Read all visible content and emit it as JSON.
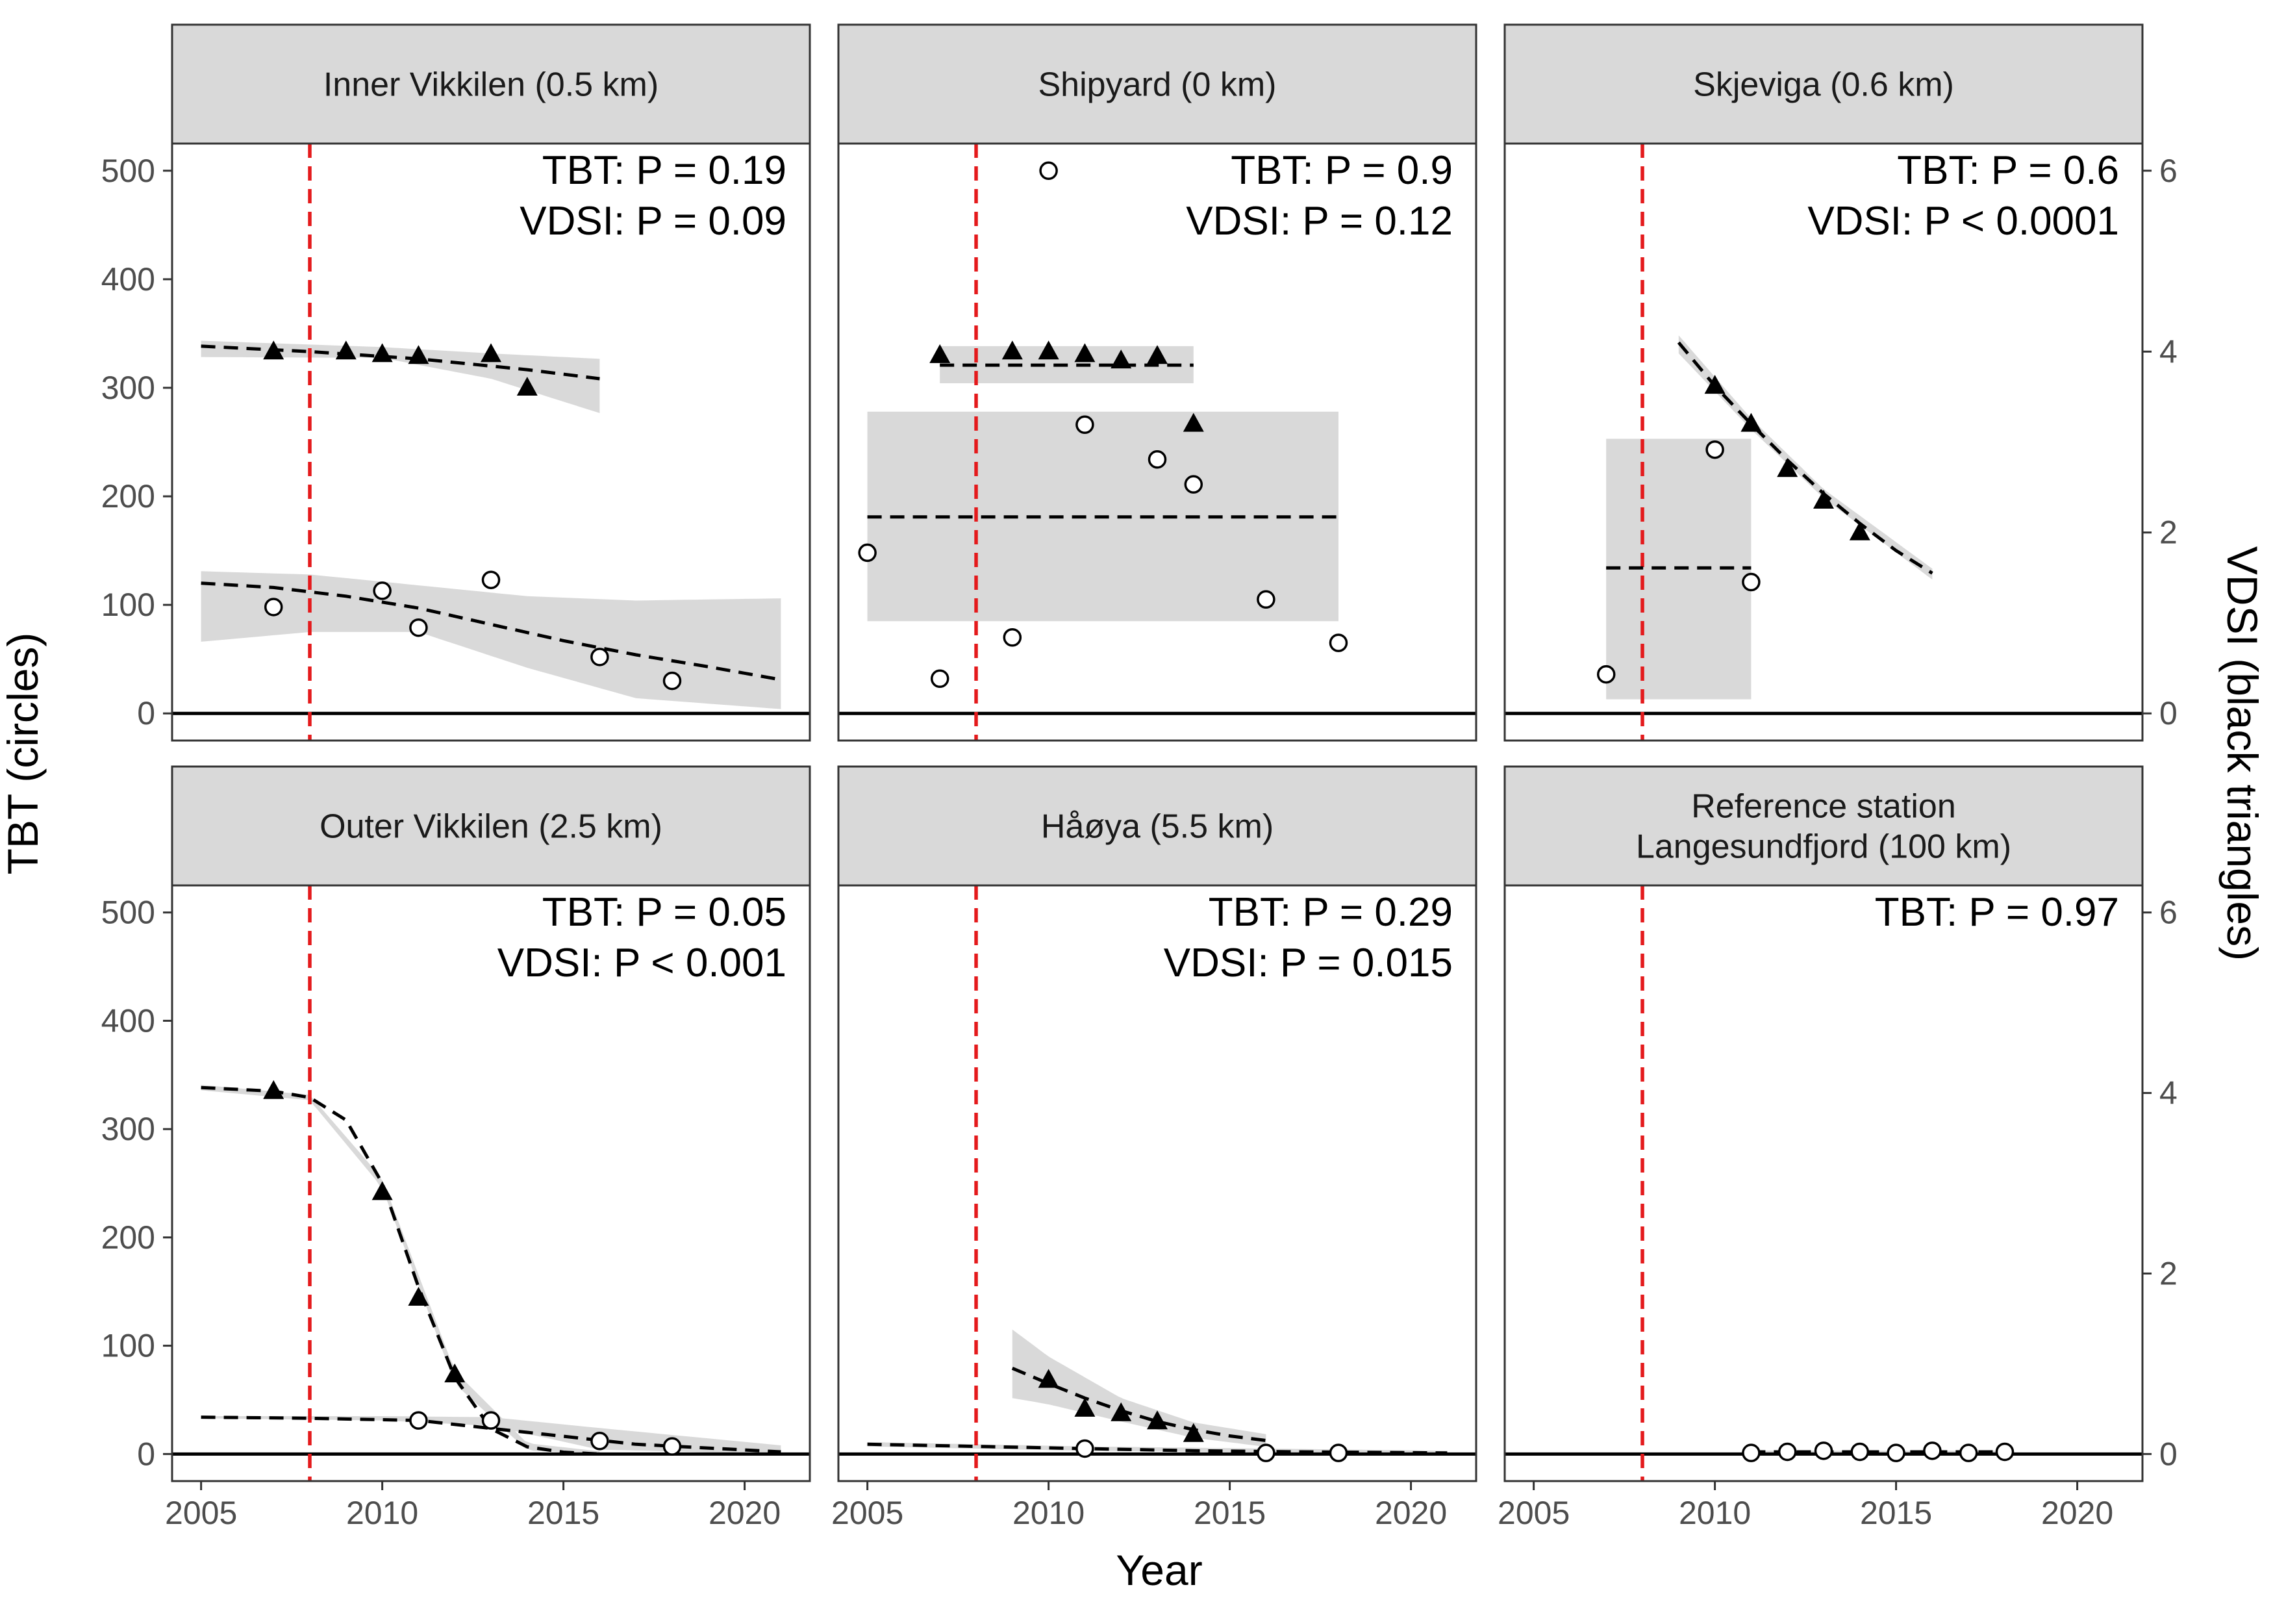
{
  "chart_data": {
    "type": "scatter",
    "layout": "faceted 2x3 with secondary y-axis",
    "xlabel": "Year",
    "ylabel_left": "TBT (circles)",
    "ylabel_right": "VDSI (black triangles)",
    "xlim": [
      2004.2,
      2021.8
    ],
    "ylim_left": [
      -25,
      525
    ],
    "ylim_right": [
      -0.3,
      6.3
    ],
    "xticks": [
      2005,
      2010,
      2015,
      2020
    ],
    "yticks_left": [
      0,
      100,
      200,
      300,
      400,
      500
    ],
    "yticks_right": [
      0,
      2,
      4,
      6
    ],
    "vline_year": 2008,
    "colors": {
      "vline": "#e41a1c",
      "ribbon": "#d9d9d9",
      "strip": "#d9d9d9",
      "points": "#000000",
      "fit": "#000000"
    },
    "legend": "none",
    "grid": false,
    "panels": [
      {
        "title": "Inner Vikkilen (0.5 km)",
        "annotations": [
          "TBT: P =  0.19",
          "VDSI: P =  0.09"
        ],
        "tbt_points": [
          [
            2007,
            98
          ],
          [
            2010,
            113
          ],
          [
            2011,
            79
          ],
          [
            2013,
            123
          ],
          [
            2016,
            52
          ],
          [
            2018,
            30
          ]
        ],
        "tbt_fit": [
          [
            2005,
            120
          ],
          [
            2007,
            116
          ],
          [
            2009,
            108
          ],
          [
            2011,
            97
          ],
          [
            2013,
            82
          ],
          [
            2015,
            67
          ],
          [
            2017,
            54
          ],
          [
            2019,
            43
          ],
          [
            2021,
            31
          ]
        ],
        "tbt_band_upper": [
          [
            2005,
            131
          ],
          [
            2008,
            128
          ],
          [
            2011,
            118
          ],
          [
            2014,
            108
          ],
          [
            2017,
            104
          ],
          [
            2021,
            106
          ]
        ],
        "tbt_band_lower": [
          [
            2005,
            66
          ],
          [
            2008,
            75
          ],
          [
            2011,
            75
          ],
          [
            2014,
            42
          ],
          [
            2017,
            14
          ],
          [
            2021,
            4
          ]
        ],
        "vdsi_points": [
          [
            2007,
            4.0
          ],
          [
            2009,
            4.0
          ],
          [
            2010,
            3.97
          ],
          [
            2011,
            3.95
          ],
          [
            2013,
            3.97
          ],
          [
            2014,
            3.6
          ]
        ],
        "vdsi_fit": [
          [
            2005,
            4.06
          ],
          [
            2008,
            4.0
          ],
          [
            2011,
            3.92
          ],
          [
            2014,
            3.8
          ],
          [
            2016,
            3.7
          ]
        ],
        "vdsi_band_upper": [
          [
            2005,
            4.12
          ],
          [
            2010,
            4.05
          ],
          [
            2013,
            3.98
          ],
          [
            2016,
            3.92
          ]
        ],
        "vdsi_band_lower": [
          [
            2005,
            3.94
          ],
          [
            2010,
            3.93
          ],
          [
            2013,
            3.7
          ],
          [
            2016,
            3.32
          ]
        ]
      },
      {
        "title": "Shipyard (0 km)",
        "annotations": [
          "TBT: P =  0.9",
          "VDSI: P =  0.12"
        ],
        "tbt_points": [
          [
            2005,
            148
          ],
          [
            2007,
            32
          ],
          [
            2009,
            70
          ],
          [
            2010,
            500
          ],
          [
            2011,
            266
          ],
          [
            2013,
            234
          ],
          [
            2014,
            211
          ],
          [
            2016,
            105
          ],
          [
            2018,
            65
          ]
        ],
        "tbt_fit": [
          [
            2005,
            181
          ],
          [
            2018,
            181
          ]
        ],
        "tbt_band_upper": [
          [
            2005,
            278
          ],
          [
            2018,
            278
          ]
        ],
        "tbt_band_lower": [
          [
            2005,
            85
          ],
          [
            2018,
            85
          ]
        ],
        "vdsi_points": [
          [
            2007,
            3.96
          ],
          [
            2009,
            4.0
          ],
          [
            2010,
            4.0
          ],
          [
            2011,
            3.97
          ],
          [
            2012,
            3.9
          ],
          [
            2013,
            3.95
          ],
          [
            2014,
            3.2
          ]
        ],
        "vdsi_fit": [
          [
            2007,
            3.85
          ],
          [
            2014,
            3.85
          ]
        ],
        "vdsi_band_upper": [
          [
            2007,
            4.06
          ],
          [
            2014,
            4.06
          ]
        ],
        "vdsi_band_lower": [
          [
            2007,
            3.65
          ],
          [
            2014,
            3.65
          ]
        ]
      },
      {
        "title": "Skjeviga (0.6 km)",
        "annotations": [
          "TBT: P =  0.6",
          "VDSI: P < 0.0001"
        ],
        "tbt_points": [
          [
            2007,
            36
          ],
          [
            2010,
            243
          ],
          [
            2011,
            121
          ]
        ],
        "tbt_fit": [
          [
            2007,
            134
          ],
          [
            2011,
            134
          ]
        ],
        "tbt_band_upper": [
          [
            2007,
            253
          ],
          [
            2011,
            253
          ]
        ],
        "tbt_band_lower": [
          [
            2007,
            13
          ],
          [
            2011,
            13
          ]
        ],
        "vdsi_points": [
          [
            2010,
            3.62
          ],
          [
            2011,
            3.2
          ],
          [
            2012,
            2.7
          ],
          [
            2013,
            2.35
          ],
          [
            2014,
            2.0
          ]
        ],
        "vdsi_fit": [
          [
            2009,
            4.1
          ],
          [
            2010,
            3.62
          ],
          [
            2011,
            3.2
          ],
          [
            2012,
            2.8
          ],
          [
            2013,
            2.43
          ],
          [
            2014,
            2.1
          ],
          [
            2015,
            1.8
          ],
          [
            2016,
            1.55
          ]
        ],
        "vdsi_band_upper": [
          [
            2009,
            4.18
          ],
          [
            2011,
            3.26
          ],
          [
            2013,
            2.48
          ],
          [
            2016,
            1.6
          ]
        ],
        "vdsi_band_lower": [
          [
            2009,
            3.98
          ],
          [
            2011,
            3.14
          ],
          [
            2013,
            2.38
          ],
          [
            2016,
            1.48
          ]
        ]
      },
      {
        "title": "Outer Vikkilen (2.5 km)",
        "annotations": [
          "TBT: P =  0.05",
          "VDSI: P < 0.001"
        ],
        "tbt_points": [
          [
            2011,
            31
          ],
          [
            2013,
            31
          ],
          [
            2016,
            12
          ],
          [
            2018,
            7
          ]
        ],
        "tbt_fit": [
          [
            2005,
            34
          ],
          [
            2008,
            33
          ],
          [
            2011,
            31
          ],
          [
            2014,
            20
          ],
          [
            2017,
            9
          ],
          [
            2021,
            2
          ]
        ],
        "tbt_band_upper": [
          [
            2005,
            35
          ],
          [
            2010,
            35
          ],
          [
            2013,
            34
          ],
          [
            2016,
            24
          ],
          [
            2021,
            8
          ]
        ],
        "tbt_band_lower": [
          [
            2005,
            33
          ],
          [
            2010,
            31
          ],
          [
            2013,
            26
          ],
          [
            2016,
            4
          ],
          [
            2021,
            0
          ]
        ],
        "vdsi_points": [
          [
            2007,
            4.02
          ],
          [
            2010,
            2.9
          ],
          [
            2011,
            1.73
          ],
          [
            2012,
            0.88
          ]
        ],
        "vdsi_fit": [
          [
            2005,
            4.06
          ],
          [
            2007,
            4.02
          ],
          [
            2008,
            3.95
          ],
          [
            2009,
            3.7
          ],
          [
            2010,
            3.0
          ],
          [
            2011,
            1.85
          ],
          [
            2012,
            0.85
          ],
          [
            2013,
            0.28
          ],
          [
            2014,
            0.08
          ],
          [
            2015,
            0.02
          ],
          [
            2016,
            0.0
          ]
        ],
        "vdsi_band_upper": [
          [
            2005,
            4.09
          ],
          [
            2008,
            3.98
          ],
          [
            2010,
            3.05
          ],
          [
            2012,
            0.92
          ],
          [
            2014,
            0.12
          ],
          [
            2016,
            0.03
          ]
        ],
        "vdsi_band_lower": [
          [
            2005,
            4.03
          ],
          [
            2008,
            3.92
          ],
          [
            2010,
            2.95
          ],
          [
            2012,
            0.78
          ],
          [
            2014,
            0.04
          ],
          [
            2016,
            0.0
          ]
        ]
      },
      {
        "title": "Håøya (5.5 km)",
        "annotations": [
          "TBT: P =  0.29",
          "VDSI: P =  0.015"
        ],
        "tbt_points": [
          [
            2011,
            5
          ],
          [
            2016,
            1
          ],
          [
            2018,
            1
          ]
        ],
        "tbt_fit": [
          [
            2005,
            9
          ],
          [
            2008,
            7
          ],
          [
            2011,
            5
          ],
          [
            2014,
            3
          ],
          [
            2017,
            2
          ],
          [
            2021,
            1
          ]
        ],
        "tbt_band_upper": [
          [
            2005,
            11
          ],
          [
            2011,
            7
          ],
          [
            2021,
            3
          ]
        ],
        "tbt_band_lower": [
          [
            2005,
            7
          ],
          [
            2011,
            3
          ],
          [
            2021,
            0
          ]
        ],
        "vdsi_points": [
          [
            2010,
            0.82
          ],
          [
            2011,
            0.5
          ],
          [
            2012,
            0.45
          ],
          [
            2013,
            0.36
          ],
          [
            2014,
            0.22
          ]
        ],
        "vdsi_fit": [
          [
            2009,
            0.95
          ],
          [
            2010,
            0.78
          ],
          [
            2011,
            0.62
          ],
          [
            2012,
            0.48
          ],
          [
            2013,
            0.36
          ],
          [
            2014,
            0.27
          ],
          [
            2015,
            0.2
          ],
          [
            2016,
            0.15
          ]
        ],
        "vdsi_band_upper": [
          [
            2009,
            1.38
          ],
          [
            2010,
            1.08
          ],
          [
            2012,
            0.62
          ],
          [
            2014,
            0.35
          ],
          [
            2016,
            0.22
          ]
        ],
        "vdsi_band_lower": [
          [
            2009,
            0.62
          ],
          [
            2010,
            0.55
          ],
          [
            2012,
            0.36
          ],
          [
            2014,
            0.18
          ],
          [
            2016,
            0.08
          ]
        ]
      },
      {
        "title": "Reference station\nLangesundfjord (100 km)",
        "annotations": [
          "TBT: P =  0.97"
        ],
        "tbt_points": [
          [
            2011,
            1
          ],
          [
            2012,
            2
          ],
          [
            2013,
            3
          ],
          [
            2014,
            2
          ],
          [
            2015,
            1
          ],
          [
            2016,
            3
          ],
          [
            2017,
            1
          ],
          [
            2018,
            2
          ]
        ],
        "tbt_fit": [
          [
            2011,
            2
          ],
          [
            2018,
            2
          ]
        ],
        "tbt_band_upper": [
          [
            2011,
            3
          ],
          [
            2018,
            3
          ]
        ],
        "tbt_band_lower": [
          [
            2011,
            1
          ],
          [
            2018,
            1
          ]
        ],
        "vdsi_points": [],
        "vdsi_fit": [],
        "vdsi_band_upper": [],
        "vdsi_band_lower": []
      }
    ]
  }
}
